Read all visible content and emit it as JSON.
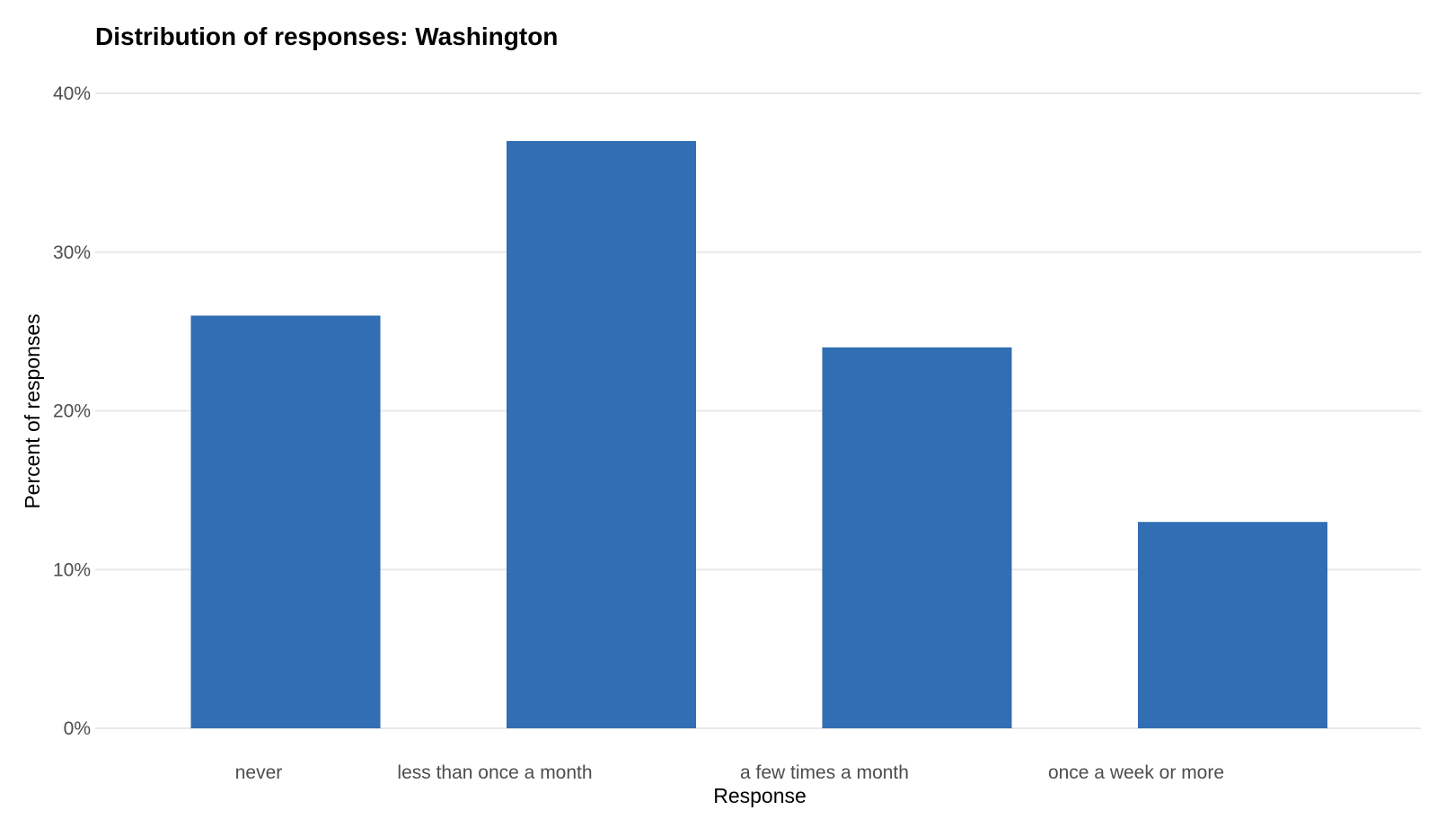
{
  "chart_data": {
    "type": "bar",
    "title": "Distribution of responses: Washington",
    "xlabel": "Response",
    "ylabel": "Percent of responses",
    "categories": [
      "never",
      "less than once a month",
      "a few times a month",
      "once a week or more"
    ],
    "values": [
      26,
      37,
      24,
      13
    ],
    "ylim": [
      0,
      40
    ],
    "yticks": [
      0,
      10,
      20,
      30,
      40
    ],
    "ytick_labels": [
      "0%",
      "10%",
      "20%",
      "30%",
      "40%"
    ],
    "grid": true,
    "bar_color": "#326EB3"
  }
}
